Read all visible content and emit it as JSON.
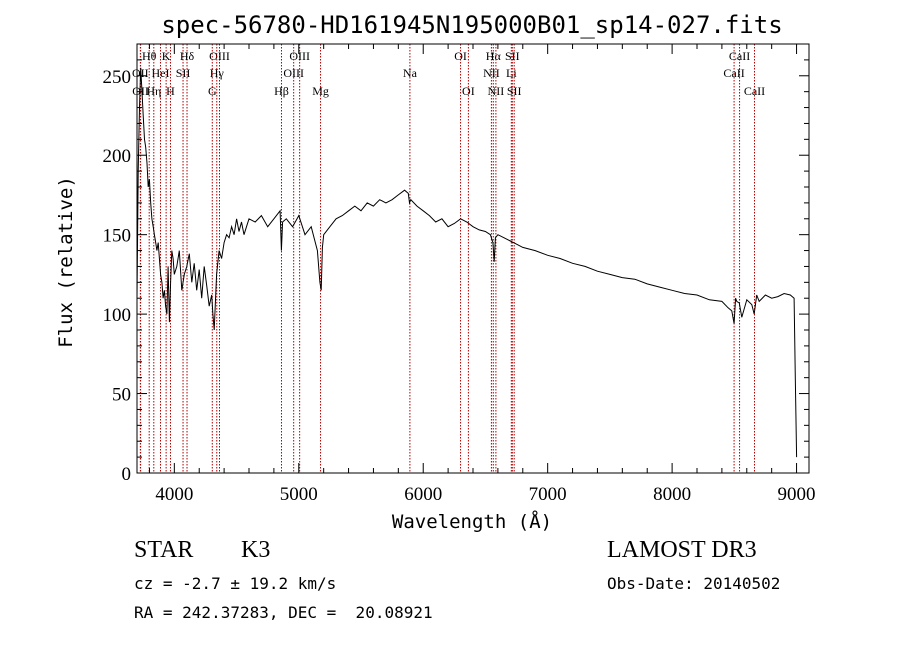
{
  "chart_data": {
    "type": "line",
    "title": "spec-56780-HD161945N195000B01_sp14-027.fits",
    "xlabel": "Wavelength (Å)",
    "ylabel": "Flux (relative)",
    "xlim": [
      3700,
      9100
    ],
    "ylim": [
      0,
      270
    ],
    "x_ticks": [
      4000,
      5000,
      6000,
      7000,
      8000,
      9000
    ],
    "y_ticks": [
      0,
      50,
      100,
      150,
      200,
      250
    ],
    "series": [
      {
        "name": "flux",
        "x": [
          3700,
          3710,
          3720,
          3730,
          3740,
          3750,
          3760,
          3770,
          3780,
          3790,
          3800,
          3810,
          3820,
          3830,
          3840,
          3850,
          3860,
          3870,
          3880,
          3890,
          3900,
          3910,
          3920,
          3930,
          3940,
          3950,
          3960,
          3970,
          3980,
          3990,
          4000,
          4020,
          4040,
          4060,
          4080,
          4100,
          4120,
          4140,
          4160,
          4180,
          4200,
          4220,
          4240,
          4260,
          4280,
          4300,
          4310,
          4320,
          4340,
          4360,
          4380,
          4400,
          4420,
          4440,
          4460,
          4480,
          4500,
          4520,
          4540,
          4560,
          4580,
          4600,
          4650,
          4700,
          4750,
          4800,
          4850,
          4860,
          4870,
          4900,
          4950,
          5000,
          5050,
          5100,
          5150,
          5170,
          5180,
          5190,
          5200,
          5250,
          5300,
          5350,
          5400,
          5450,
          5500,
          5550,
          5600,
          5650,
          5700,
          5750,
          5800,
          5850,
          5880,
          5890,
          5900,
          5950,
          6000,
          6050,
          6100,
          6150,
          6200,
          6250,
          6300,
          6350,
          6400,
          6450,
          6500,
          6540,
          6560,
          6570,
          6580,
          6600,
          6650,
          6700,
          6750,
          6800,
          6900,
          7000,
          7100,
          7200,
          7300,
          7400,
          7500,
          7600,
          7700,
          7800,
          7900,
          8000,
          8100,
          8200,
          8300,
          8400,
          8450,
          8480,
          8498,
          8510,
          8520,
          8540,
          8560,
          8600,
          8640,
          8660,
          8680,
          8700,
          8750,
          8800,
          8850,
          8900,
          8950,
          8980,
          8990,
          9000
        ],
        "y": [
          110,
          190,
          230,
          255,
          240,
          225,
          210,
          205,
          195,
          180,
          185,
          170,
          160,
          155,
          150,
          145,
          140,
          145,
          135,
          125,
          120,
          110,
          115,
          105,
          100,
          130,
          95,
          120,
          140,
          135,
          125,
          130,
          140,
          115,
          125,
          130,
          138,
          120,
          132,
          115,
          128,
          110,
          130,
          118,
          105,
          112,
          100,
          90,
          125,
          140,
          135,
          145,
          150,
          148,
          155,
          150,
          160,
          152,
          158,
          150,
          155,
          160,
          158,
          162,
          155,
          160,
          165,
          140,
          158,
          160,
          155,
          162,
          150,
          155,
          140,
          120,
          115,
          142,
          150,
          155,
          160,
          162,
          165,
          168,
          165,
          170,
          168,
          172,
          170,
          172,
          175,
          178,
          176,
          170,
          172,
          168,
          165,
          162,
          158,
          160,
          155,
          157,
          160,
          158,
          155,
          153,
          152,
          150,
          145,
          133,
          148,
          150,
          148,
          146,
          144,
          142,
          140,
          137,
          135,
          132,
          130,
          127,
          125,
          123,
          122,
          119,
          117,
          115,
          113,
          112,
          109,
          108,
          104,
          102,
          94,
          110,
          108,
          107,
          98,
          109,
          106,
          100,
          112,
          108,
          112,
          110,
          111,
          113,
          112,
          110,
          60,
          10
        ]
      }
    ],
    "spectral_lines": [
      {
        "label": "Hθ",
        "wl": 3798,
        "row": 0
      },
      {
        "label": "OII",
        "wl": 3727,
        "row": 1
      },
      {
        "label": "OII",
        "wl": 3729,
        "row": 2
      },
      {
        "label": "K",
        "wl": 3934,
        "row": 0
      },
      {
        "label": "HeI",
        "wl": 3889,
        "row": 1
      },
      {
        "label": "Hη",
        "wl": 3835,
        "row": 2
      },
      {
        "label": "SII",
        "wl": 4070,
        "row": 1
      },
      {
        "label": "H",
        "wl": 3969,
        "row": 2
      },
      {
        "label": "Hδ",
        "wl": 4102,
        "row": 0
      },
      {
        "label": "OIII",
        "wl": 4363,
        "row": 0
      },
      {
        "label": "Hγ",
        "wl": 4341,
        "row": 1
      },
      {
        "label": "G",
        "wl": 4305,
        "row": 2
      },
      {
        "label": "Hβ",
        "wl": 4861,
        "row": 2
      },
      {
        "label": "OIII",
        "wl": 5007,
        "row": 0
      },
      {
        "label": "OIII",
        "wl": 4959,
        "row": 1
      },
      {
        "label": "Mg",
        "wl": 5175,
        "row": 2
      },
      {
        "label": "Na",
        "wl": 5893,
        "row": 1
      },
      {
        "label": "OI",
        "wl": 6300,
        "row": 0
      },
      {
        "label": "OI",
        "wl": 6363,
        "row": 2
      },
      {
        "label": "Hα",
        "wl": 6563,
        "row": 0
      },
      {
        "label": "NII",
        "wl": 6548,
        "row": 1
      },
      {
        "label": "NII",
        "wl": 6584,
        "row": 2
      },
      {
        "label": "SII",
        "wl": 6716,
        "row": 0
      },
      {
        "label": "Li",
        "wl": 6708,
        "row": 1
      },
      {
        "label": "SII",
        "wl": 6731,
        "row": 2
      },
      {
        "label": "CaII",
        "wl": 8542,
        "row": 0
      },
      {
        "label": "CaII",
        "wl": 8498,
        "row": 1
      },
      {
        "label": "CaII",
        "wl": 8662,
        "row": 2
      }
    ]
  },
  "info": {
    "object_class": "STAR",
    "subclass": "K3",
    "redshift": "cz = -2.7 ± 19.2 km/s",
    "coords": "RA = 242.37283, DEC =  20.08921",
    "survey": "LAMOST DR3",
    "obs_date": "Obs-Date: 20140502"
  },
  "colors": {
    "spectrum": "#000000",
    "line_marker": "#b00000",
    "axis": "#000000",
    "background": "#ffffff"
  }
}
